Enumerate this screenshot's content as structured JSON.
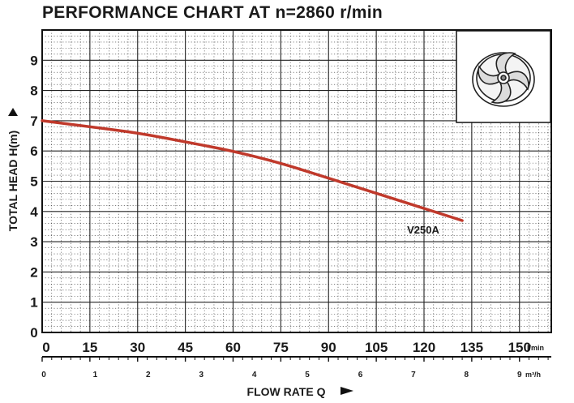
{
  "title": "PERFORMANCE CHART AT n=2860 r/min",
  "colors": {
    "curve": "#c0392b",
    "grid": "#333333",
    "frame": "#111111"
  },
  "icons": {
    "inset": "impeller-icon"
  },
  "chart_data": {
    "type": "line",
    "title": "PERFORMANCE CHART AT n=2860 r/min",
    "xlabel": "FLOW RATE Q",
    "ylabel": "TOTAL HEAD H(m)",
    "xlim": [
      0,
      160
    ],
    "ylim": [
      0,
      10
    ],
    "x_unit": "l/min",
    "x2_unit": "m³/h",
    "x_ticks": [
      "0",
      "15",
      "30",
      "45",
      "60",
      "75",
      "90",
      "105",
      "120",
      "135",
      "150"
    ],
    "x2_ticks": [
      "0",
      "1",
      "2",
      "3",
      "4",
      "5",
      "6",
      "7",
      "8",
      "9"
    ],
    "y_ticks": [
      "0",
      "1",
      "2",
      "3",
      "4",
      "5",
      "6",
      "7",
      "8",
      "9"
    ],
    "grid": true,
    "series": [
      {
        "name": "V250A",
        "x": [
          0,
          15,
          30,
          45,
          60,
          75,
          90,
          105,
          120,
          132
        ],
        "y": [
          7.0,
          6.8,
          6.6,
          6.3,
          6.0,
          5.6,
          5.1,
          4.6,
          4.1,
          3.7
        ]
      }
    ]
  }
}
